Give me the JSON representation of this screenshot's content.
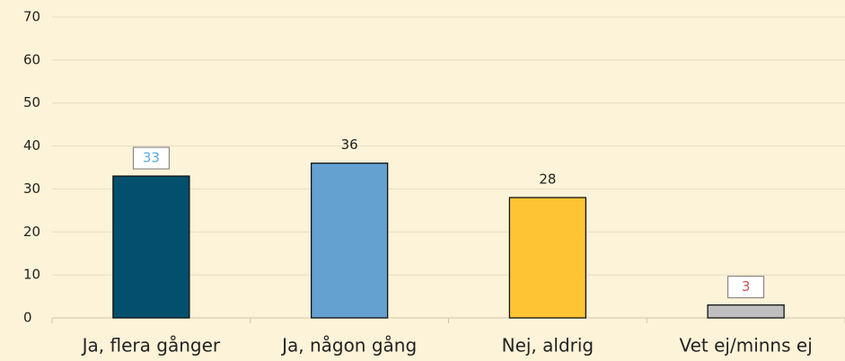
{
  "chart_data": {
    "type": "bar",
    "categories": [
      "Ja, flera gånger",
      "Ja, någon gång",
      "Nej, aldrig",
      "Vet ej/minns ej"
    ],
    "values": [
      33,
      36,
      28,
      3
    ],
    "colors": [
      "#02506e",
      "#64a0d0",
      "#ffc433",
      "#bfbfbf"
    ],
    "label_colors": [
      "#5aa9e6",
      "#222222",
      "#222222",
      "#d0505a"
    ],
    "label_boxed": [
      true,
      false,
      false,
      true
    ],
    "ylim": [
      0,
      70
    ],
    "yticks": [
      0,
      10,
      20,
      30,
      40,
      50,
      60,
      70
    ],
    "grid": true
  }
}
